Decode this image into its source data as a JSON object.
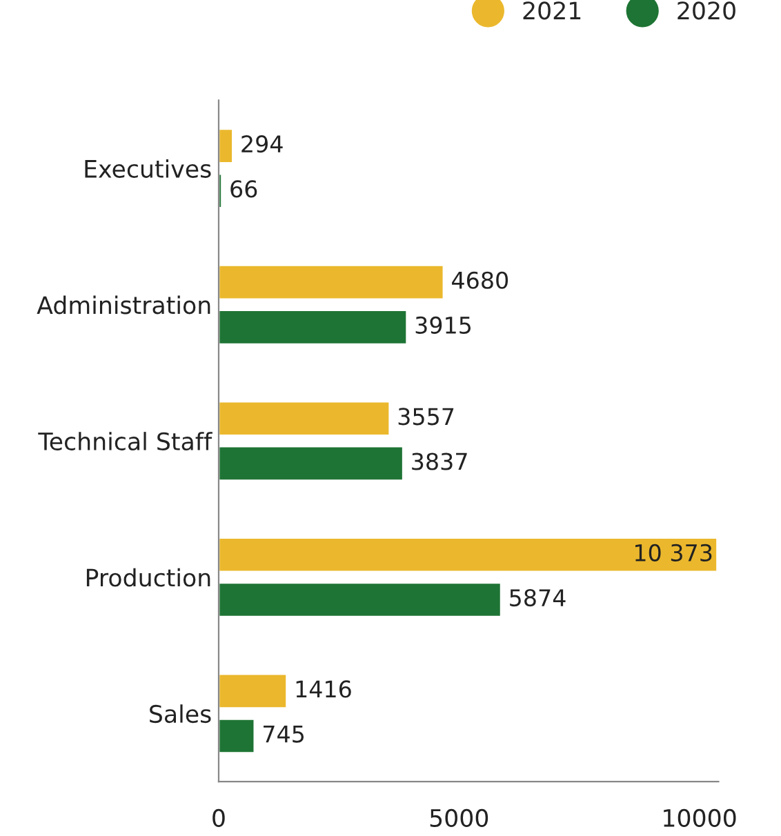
{
  "chart_data": {
    "type": "bar",
    "orientation": "horizontal",
    "categories": [
      "Executives",
      "Administration",
      "Technical Staff",
      "Production",
      "Sales"
    ],
    "series": [
      {
        "name": "2021",
        "color": "#ebb82d",
        "values": [
          294,
          4680,
          3557,
          10373,
          1416
        ],
        "value_labels": [
          "294",
          "4680",
          "3557",
          "10 373",
          "1416"
        ]
      },
      {
        "name": "2020",
        "color": "#1e7434",
        "values": [
          66,
          3915,
          3837,
          5874,
          745
        ],
        "value_labels": [
          "66",
          "3915",
          "3837",
          "5874",
          "745"
        ]
      }
    ],
    "xlim": [
      0,
      10400
    ],
    "xticks": [
      0,
      5000,
      10000
    ],
    "grid": false,
    "legend": "top right",
    "marker": "circle"
  }
}
